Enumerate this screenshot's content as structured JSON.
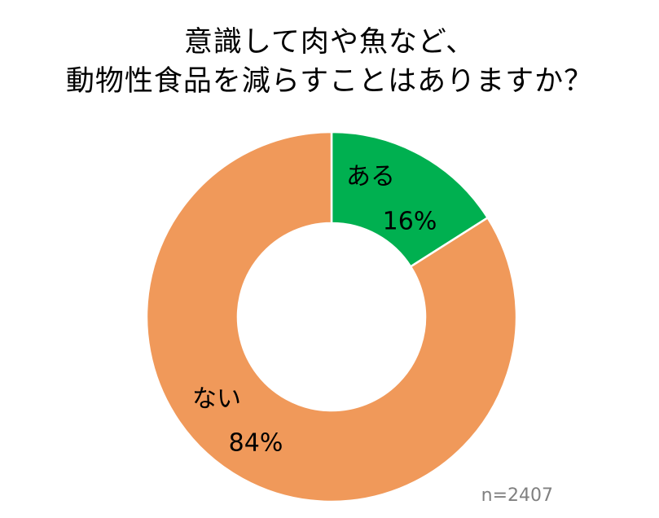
{
  "chart_data": {
    "type": "pie",
    "title": [
      "意識して肉や魚など、",
      "動物性食品を減らすことはありますか？"
    ],
    "categories": [
      "ある",
      "ない"
    ],
    "values": [
      16,
      84
    ],
    "value_labels": [
      "16%",
      "84%"
    ],
    "colors": [
      "#00B050",
      "#F0995A"
    ],
    "legend": "none",
    "note": "n=2407"
  }
}
